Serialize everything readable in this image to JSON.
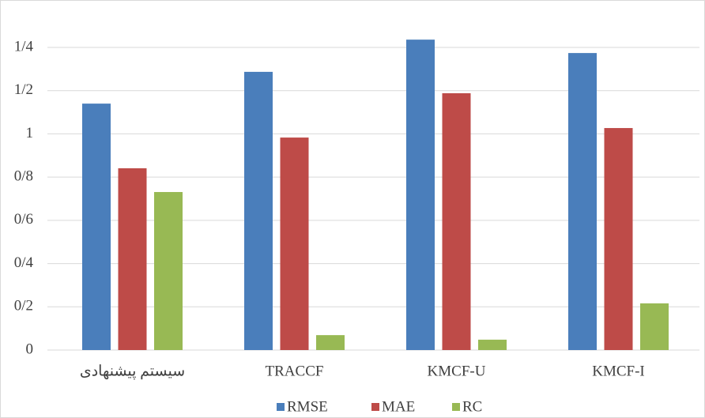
{
  "chart_data": {
    "type": "bar",
    "categories": [
      "سیستم پیشنهادی",
      "TRACCF",
      "KMCF-U",
      "KMCF-I"
    ],
    "series": [
      {
        "name": "RMSE",
        "color": "#4a7ebb",
        "values": [
          1.14,
          1.287,
          1.436,
          1.374
        ]
      },
      {
        "name": "MAE",
        "color": "#be4b48",
        "values": [
          0.841,
          0.983,
          1.188,
          1.027
        ]
      },
      {
        "name": "RC",
        "color": "#98b954",
        "values": [
          0.731,
          0.069,
          0.048,
          0.216
        ]
      }
    ],
    "ylim": [
      0,
      1.4
    ],
    "yticks": [
      0,
      {
        "value": 0.2,
        "label": "0/2"
      },
      {
        "value": 0.4,
        "label": "0/4"
      },
      {
        "value": 0.6,
        "label": "0/6"
      },
      {
        "value": 0.8,
        "label": "0/8"
      },
      1,
      {
        "value": 1.2,
        "label": "1/2"
      },
      {
        "value": 1.4,
        "label": "1/4"
      }
    ],
    "grid": true,
    "legend": "bottom"
  }
}
